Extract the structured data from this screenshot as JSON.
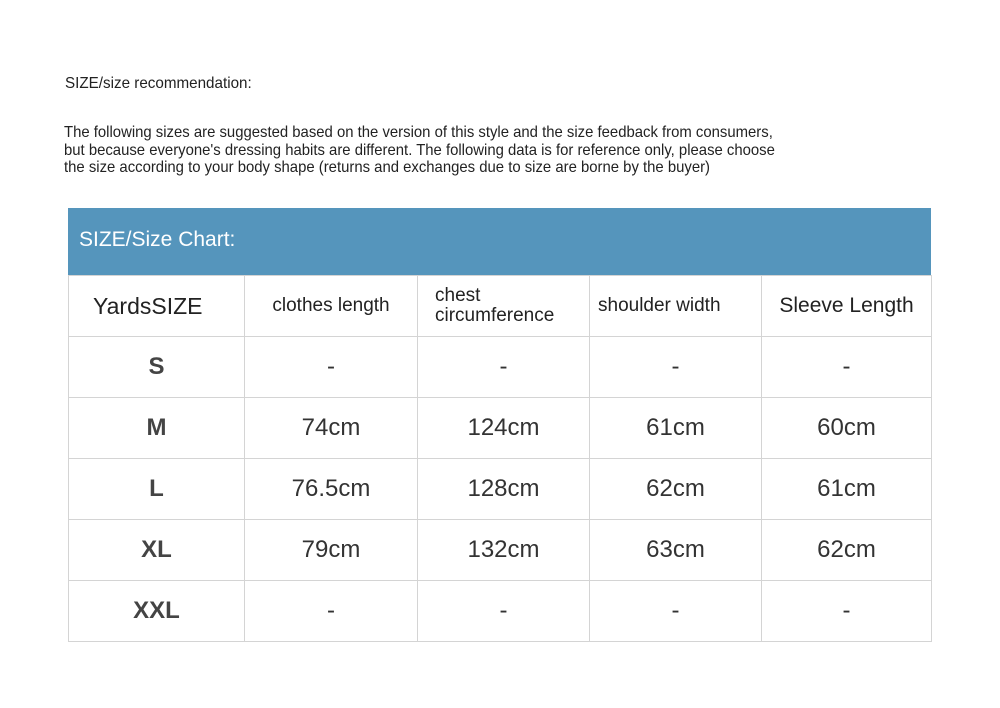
{
  "recommendation_title": "SIZE/size recommendation:",
  "description_lines": [
    "The following sizes are suggested based on the version of this style and the size feedback from consumers,",
    "but because everyone's dressing habits are different. The following data is for reference only, please choose",
    "the size according to your body shape (returns and exchanges due to size are borne by the buyer)"
  ],
  "chart_title": "SIZE/Size Chart:",
  "header_color": "#5595bc",
  "columns": [
    "YardsSIZE",
    "clothes length",
    "chest circumference",
    "shoulder width",
    "Sleeve Length"
  ],
  "rows": [
    [
      "S",
      "-",
      "-",
      "-",
      "-"
    ],
    [
      "M",
      "74cm",
      "124cm",
      "61cm",
      "60cm"
    ],
    [
      "L",
      "76.5cm",
      "128cm",
      "62cm",
      "61cm"
    ],
    [
      "XL",
      "79cm",
      "132cm",
      "63cm",
      "62cm"
    ],
    [
      "XXL",
      "-",
      "-",
      "-",
      "-"
    ]
  ]
}
